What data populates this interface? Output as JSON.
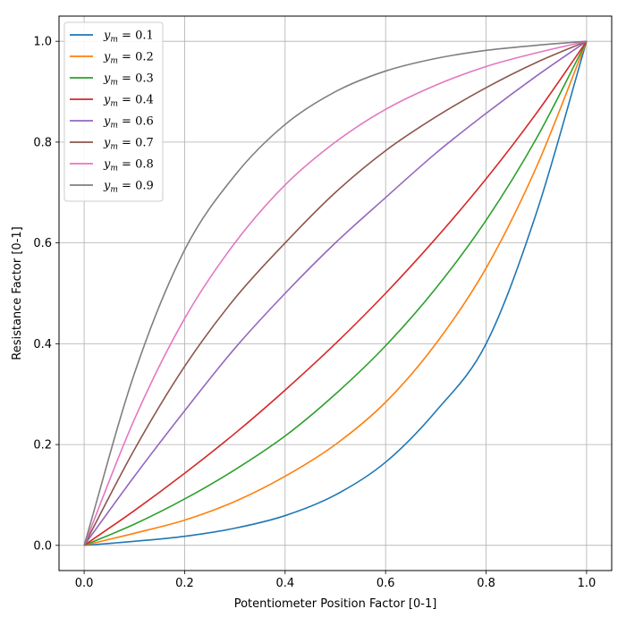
{
  "chart_data": {
    "type": "line",
    "xlabel": "Potentiometer Position Factor [0-1]",
    "ylabel": "Resistance Factor [0-1]",
    "xlim": [
      -0.05,
      1.05
    ],
    "ylim": [
      -0.05,
      1.05
    ],
    "xticks": [
      0.0,
      0.2,
      0.4,
      0.6,
      0.8,
      1.0
    ],
    "yticks": [
      0.0,
      0.2,
      0.4,
      0.6,
      0.8,
      1.0
    ],
    "xtick_labels": [
      "0.0",
      "0.2",
      "0.4",
      "0.6",
      "0.8",
      "1.0"
    ],
    "ytick_labels": [
      "0.0",
      "0.2",
      "0.4",
      "0.6",
      "0.8",
      "1.0"
    ],
    "grid": true,
    "legend_position": "top-left",
    "x": [
      0.0,
      0.1,
      0.2,
      0.3,
      0.4,
      0.5,
      0.6,
      0.7,
      0.8,
      0.9,
      1.0
    ],
    "series": [
      {
        "name": "0.1",
        "color": "#1f77b4",
        "values": [
          0.0,
          0.008,
          0.018,
          0.034,
          0.059,
          0.1,
          0.165,
          0.266,
          0.4,
          0.659,
          1.0
        ]
      },
      {
        "name": "0.2",
        "color": "#ff7f0e",
        "values": [
          0.0,
          0.024,
          0.05,
          0.087,
          0.137,
          0.2,
          0.284,
          0.4,
          0.55,
          0.75,
          1.0
        ]
      },
      {
        "name": "0.3",
        "color": "#2ca02c",
        "values": [
          0.0,
          0.042,
          0.092,
          0.15,
          0.217,
          0.3,
          0.396,
          0.51,
          0.645,
          0.807,
          1.0
        ]
      },
      {
        "name": "0.4",
        "color": "#d62728",
        "values": [
          0.0,
          0.069,
          0.143,
          0.222,
          0.308,
          0.4,
          0.5,
          0.609,
          0.727,
          0.857,
          1.0
        ]
      },
      {
        "name": "0.6",
        "color": "#9467bd",
        "values": [
          0.0,
          0.137,
          0.267,
          0.391,
          0.5,
          0.6,
          0.69,
          0.778,
          0.857,
          0.931,
          1.0
        ]
      },
      {
        "name": "0.7",
        "color": "#8c564b",
        "values": [
          0.0,
          0.19,
          0.355,
          0.49,
          0.6,
          0.7,
          0.783,
          0.85,
          0.908,
          0.958,
          1.0
        ]
      },
      {
        "name": "0.8",
        "color": "#e377c2",
        "values": [
          0.0,
          0.25,
          0.45,
          0.6,
          0.715,
          0.8,
          0.865,
          0.913,
          0.95,
          0.977,
          1.0
        ]
      },
      {
        "name": "0.9",
        "color": "#7f7f7f",
        "values": [
          0.0,
          0.341,
          0.586,
          0.734,
          0.835,
          0.9,
          0.941,
          0.966,
          0.982,
          0.992,
          1.0
        ]
      }
    ]
  }
}
